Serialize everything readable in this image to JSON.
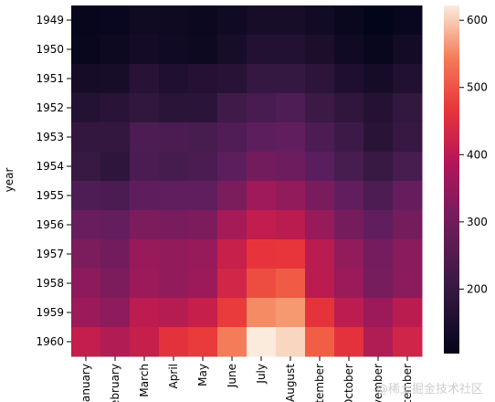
{
  "chart_data": {
    "type": "heatmap",
    "title": "",
    "xlabel": "",
    "ylabel": "year",
    "x_categories": [
      "January",
      "February",
      "March",
      "April",
      "May",
      "June",
      "July",
      "August",
      "September",
      "October",
      "November",
      "December"
    ],
    "x_tick_labels_shown": [
      "anuary",
      "ebruary",
      "March",
      "April",
      "May",
      "June",
      "July",
      "August",
      "eptember",
      "October",
      "ovember",
      "ecember"
    ],
    "y_categories": [
      "1949",
      "1950",
      "1951",
      "1952",
      "1953",
      "1954",
      "1955",
      "1956",
      "1957",
      "1958",
      "1959",
      "1960"
    ],
    "values": [
      [
        112,
        118,
        132,
        129,
        121,
        135,
        148,
        148,
        136,
        119,
        104,
        118
      ],
      [
        115,
        126,
        141,
        135,
        125,
        149,
        170,
        170,
        158,
        133,
        114,
        140
      ],
      [
        145,
        150,
        178,
        163,
        172,
        178,
        199,
        199,
        184,
        162,
        146,
        166
      ],
      [
        171,
        180,
        193,
        181,
        183,
        218,
        230,
        242,
        209,
        191,
        172,
        194
      ],
      [
        196,
        196,
        236,
        235,
        229,
        243,
        264,
        272,
        237,
        211,
        180,
        201
      ],
      [
        204,
        188,
        235,
        227,
        234,
        264,
        302,
        293,
        259,
        229,
        203,
        229
      ],
      [
        242,
        233,
        267,
        269,
        270,
        315,
        364,
        347,
        312,
        274,
        237,
        278
      ],
      [
        284,
        277,
        317,
        313,
        318,
        374,
        413,
        405,
        355,
        306,
        271,
        306
      ],
      [
        315,
        301,
        356,
        348,
        355,
        422,
        465,
        467,
        404,
        347,
        305,
        336
      ],
      [
        340,
        318,
        362,
        348,
        363,
        435,
        491,
        505,
        404,
        359,
        310,
        337
      ],
      [
        360,
        342,
        406,
        396,
        420,
        472,
        548,
        559,
        463,
        407,
        362,
        405
      ],
      [
        417,
        391,
        419,
        461,
        472,
        535,
        622,
        606,
        508,
        461,
        390,
        432
      ]
    ],
    "colormap": "rocket",
    "colorbar": {
      "ticks": [
        200,
        300,
        400,
        500,
        600
      ],
      "range": [
        104,
        622
      ]
    }
  },
  "watermark": "@稀土掘金技术社区"
}
